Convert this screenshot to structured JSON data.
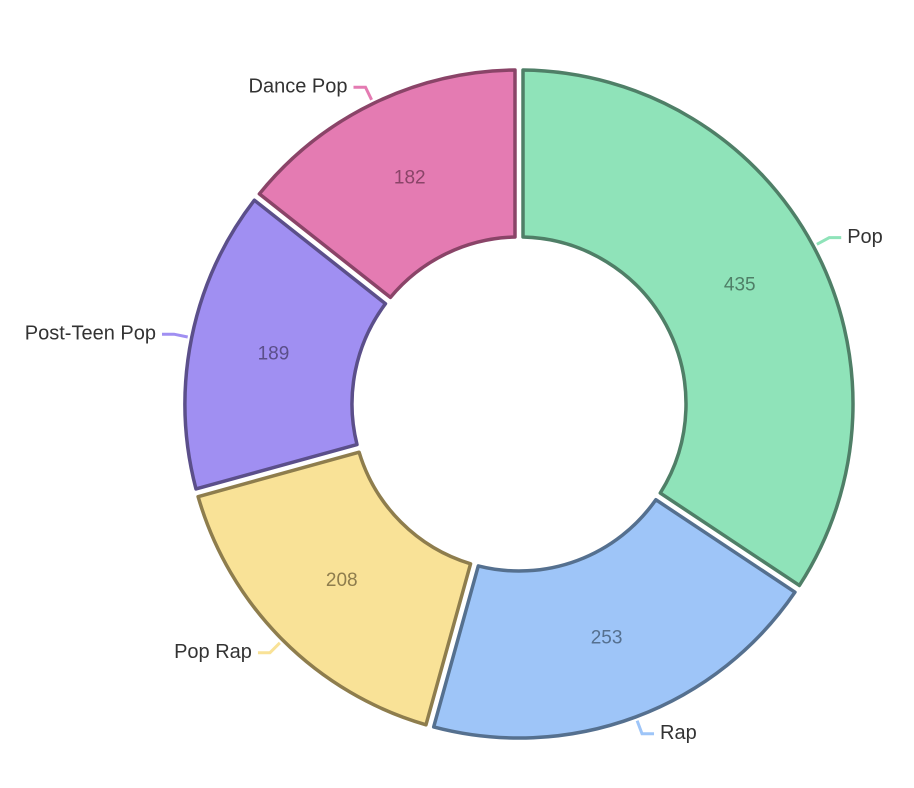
{
  "chart_data": {
    "type": "donut",
    "categories": [
      "Pop",
      "Rap",
      "Pop Rap",
      "Post-Teen Pop",
      "Dance Pop"
    ],
    "values": [
      435,
      253,
      208,
      189,
      182
    ],
    "colors": [
      "#8fe3b9",
      "#9ec5f8",
      "#f9e297",
      "#a08ff2",
      "#e47bb2"
    ],
    "border_colors": [
      "#4f7f67",
      "#55708f",
      "#8e7d4d",
      "#5b4f8a",
      "#8a4468"
    ]
  }
}
